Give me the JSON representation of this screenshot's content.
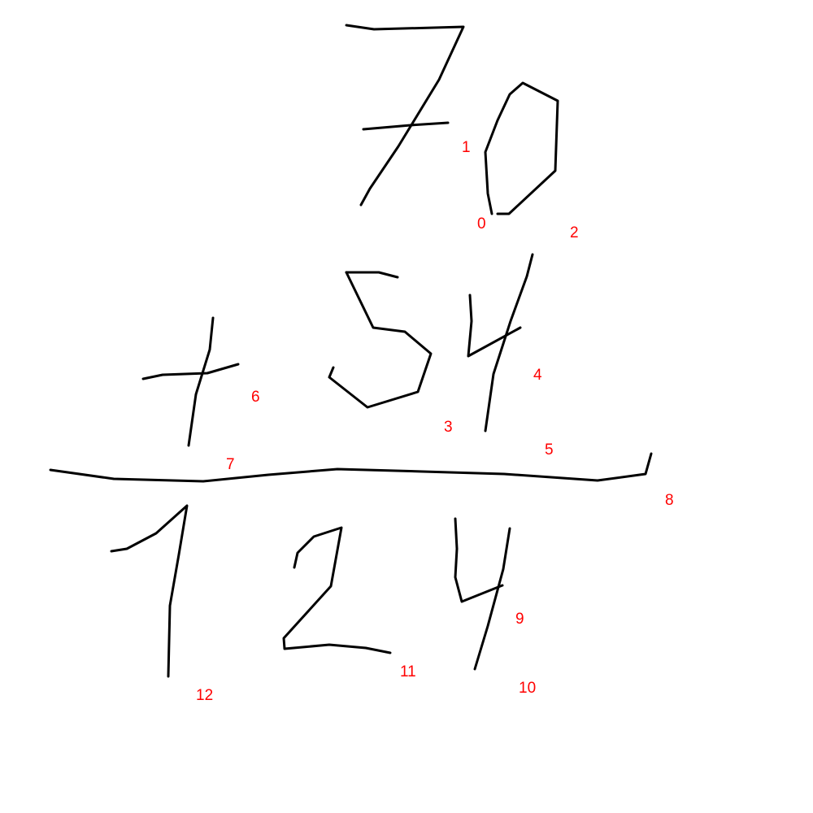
{
  "colors": {
    "background": "#ffffff",
    "ink": "#000000",
    "label": "#ff0000"
  },
  "labels": [
    {
      "id": "l1",
      "text": "1"
    },
    {
      "id": "l0",
      "text": "0"
    },
    {
      "id": "l2",
      "text": "2"
    },
    {
      "id": "l4",
      "text": "4"
    },
    {
      "id": "l6",
      "text": "6"
    },
    {
      "id": "l3",
      "text": "3"
    },
    {
      "id": "l5",
      "text": "5"
    },
    {
      "id": "l7",
      "text": "7"
    },
    {
      "id": "l8",
      "text": "8"
    },
    {
      "id": "l9",
      "text": "9"
    },
    {
      "id": "l11",
      "text": "11"
    },
    {
      "id": "l10",
      "text": "10"
    },
    {
      "id": "l12",
      "text": "12"
    }
  ]
}
